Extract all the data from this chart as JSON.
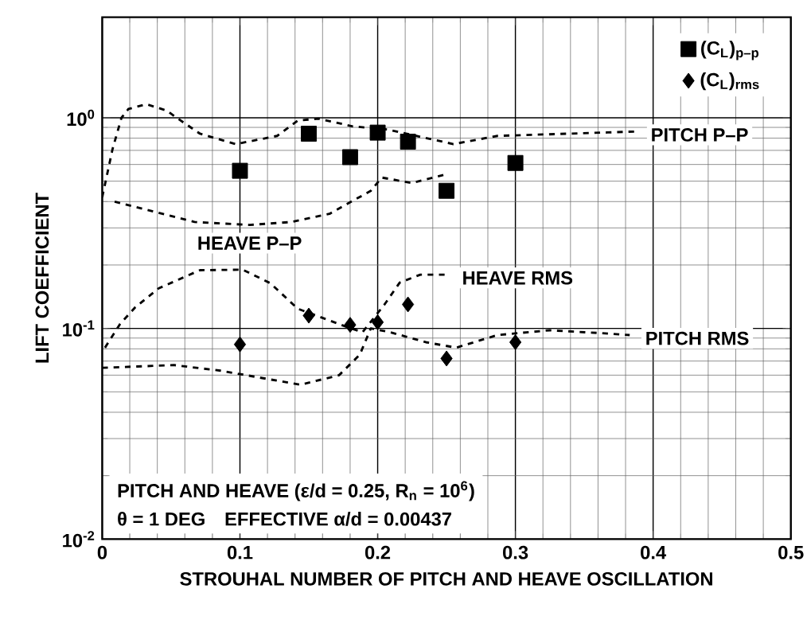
{
  "chart_data": {
    "type": "line",
    "xlabel": "STROUHAL NUMBER OF PITCH AND HEAVE OSCILLATION",
    "ylabel": "LIFT COEFFICIENT",
    "xlim": [
      0,
      0.5
    ],
    "xticks": [
      0,
      0.1,
      0.2,
      0.3,
      0.4,
      0.5
    ],
    "ylim": [
      0.01,
      3
    ],
    "yticks": [
      {
        "value": 0.01,
        "label": "10$^{-2}$"
      },
      {
        "value": 0.1,
        "label": "10$^{-1}$"
      },
      {
        "value": 1,
        "label": "10$^{0}$"
      }
    ],
    "log": "y",
    "grid": true,
    "legend": "top right",
    "annotations": [
      "PITCH AND HEAVE (ε/d = 0.25, R$_{n}$ = 10$^{6}$)",
      "θ = 1 DEG",
      "EFFECTIVE α/d = 0.00437"
    ],
    "series": [
      {
        "name": "PITCH P–P",
        "color": "#000000",
        "line_style": "dashed",
        "marker": "none",
        "x": [
          0,
          0.0075,
          0.014,
          0.019,
          0.032,
          0.047,
          0.054,
          0.071,
          0.097,
          0.127,
          0.142,
          0.157,
          0.182,
          0.207,
          0.255,
          0.287,
          0.338,
          0.387
        ],
        "values": [
          0.42,
          0.71,
          1.0,
          1.1,
          1.16,
          1.08,
          1.0,
          0.84,
          0.75,
          0.82,
          0.97,
          0.99,
          0.91,
          0.88,
          0.75,
          0.82,
          0.84,
          0.86
        ]
      },
      {
        "name": "HEAVE P–P",
        "color": "#000000",
        "line_style": "dashed",
        "marker": "none",
        "x": [
          0.009,
          0.067,
          0.107,
          0.137,
          0.165,
          0.195,
          0.203,
          0.225,
          0.25
        ],
        "values": [
          0.4,
          0.32,
          0.31,
          0.32,
          0.35,
          0.45,
          0.52,
          0.49,
          0.54
        ]
      },
      {
        "name": "HEAVE RMS",
        "color": "#000000",
        "line_style": "dashed",
        "marker": "none",
        "x": [
          0.002,
          0.013,
          0.024,
          0.041,
          0.071,
          0.102,
          0.122,
          0.142,
          0.177,
          0.189,
          0.205,
          0.216,
          0.231,
          0.25
        ],
        "values": [
          0.081,
          0.105,
          0.126,
          0.155,
          0.189,
          0.19,
          0.164,
          0.124,
          0.102,
          0.096,
          0.13,
          0.165,
          0.18,
          0.18
        ]
      },
      {
        "name": "PITCH RMS",
        "color": "#000000",
        "line_style": "dashed",
        "marker": "none",
        "x": [
          0,
          0.052,
          0.086,
          0.144,
          0.172,
          0.187,
          0.195,
          0.209,
          0.235,
          0.257,
          0.287,
          0.325,
          0.362,
          0.383
        ],
        "values": [
          0.065,
          0.067,
          0.063,
          0.054,
          0.06,
          0.075,
          0.1,
          0.096,
          0.086,
          0.081,
          0.093,
          0.098,
          0.095,
          0.093
        ]
      },
      {
        "name": "(C$_{L}$)$_{p–p}$",
        "type": "scatter",
        "color": "#000000",
        "marker": "square",
        "x": [
          0.1,
          0.15,
          0.18,
          0.2,
          0.222,
          0.25,
          0.3
        ],
        "values": [
          0.56,
          0.84,
          0.65,
          0.85,
          0.77,
          0.45,
          0.61
        ]
      },
      {
        "name": "(C$_{L}$)$_{rms}$",
        "type": "scatter",
        "color": "#000000",
        "marker": "diamond",
        "x": [
          0.1,
          0.15,
          0.18,
          0.2,
          0.222,
          0.25,
          0.3
        ],
        "values": [
          0.084,
          0.115,
          0.104,
          0.107,
          0.13,
          0.072,
          0.086
        ]
      }
    ]
  }
}
